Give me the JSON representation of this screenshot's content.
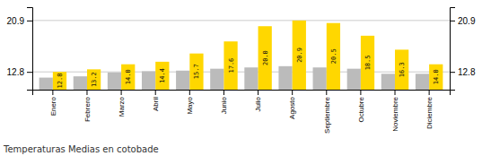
{
  "chart_data": {
    "type": "bar",
    "title": "Temperaturas Medias en cotobade",
    "categories": [
      "Enero",
      "Febrero",
      "Marzo",
      "Abril",
      "Mayo",
      "Junio",
      "Julio",
      "Agosto",
      "Septiembre",
      "Octubre",
      "Noviembre",
      "Diciembre"
    ],
    "series": [
      {
        "color": "#BBBBBB",
        "values": [
          11.9,
          12.1,
          12.7,
          12.9,
          13.0,
          13.3,
          13.5,
          13.7,
          13.5,
          13.3,
          12.5,
          12.5
        ]
      },
      {
        "color": "#FFD700",
        "values": [
          12.8,
          13.2,
          14.0,
          14.4,
          15.7,
          17.6,
          20.0,
          20.9,
          20.5,
          18.5,
          16.3,
          14.0
        ],
        "value_labels": [
          "12.8",
          "13.2",
          "14.0",
          "14.4",
          "15.7",
          "17.6",
          "20.0",
          "20.9",
          "20.5",
          "18.5",
          "16.3",
          "14.0"
        ]
      }
    ],
    "ylim": [
      10.0,
      23.0
    ],
    "yticks": [
      12.8,
      20.9
    ],
    "y2lim": [
      10.0,
      23.0
    ],
    "y2ticks": [
      12.8,
      20.9
    ],
    "grid": true,
    "data_labels": true
  }
}
